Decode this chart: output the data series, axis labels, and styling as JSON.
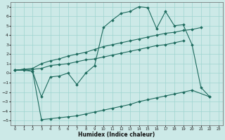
{
  "xlabel": "Humidex (Indice chaleur)",
  "ylabel": "",
  "xlim": [
    -0.5,
    23.5
  ],
  "ylim": [
    -5.5,
    7.5
  ],
  "xticks": [
    0,
    1,
    2,
    3,
    4,
    5,
    6,
    7,
    8,
    9,
    10,
    11,
    12,
    13,
    14,
    15,
    16,
    17,
    18,
    19,
    20,
    21,
    22,
    23
  ],
  "yticks": [
    -5,
    -4,
    -3,
    -2,
    -1,
    0,
    1,
    2,
    3,
    4,
    5,
    6,
    7
  ],
  "bg_color": "#cce9e7",
  "line_color": "#1e6b5e",
  "grid_color": "#9fd4cf",
  "line_top_x": [
    0,
    1,
    2,
    3,
    4,
    5,
    6,
    7,
    8,
    9,
    10,
    11,
    12,
    13,
    14,
    15,
    16,
    17,
    18,
    19,
    20,
    21
  ],
  "line_top_y": [
    0.3,
    0.4,
    0.5,
    1.0,
    1.3,
    1.5,
    1.8,
    2.0,
    2.2,
    2.5,
    2.8,
    3.0,
    3.2,
    3.4,
    3.6,
    3.8,
    4.0,
    4.2,
    4.3,
    4.5,
    4.6,
    4.8
  ],
  "line_mid_x": [
    0,
    1,
    2,
    3,
    4,
    5,
    6,
    7,
    8,
    9,
    10,
    11,
    12,
    13,
    14,
    15,
    16,
    17,
    18,
    19
  ],
  "line_mid_y": [
    0.3,
    0.4,
    0.4,
    0.5,
    0.8,
    0.9,
    1.0,
    1.2,
    1.4,
    1.5,
    1.7,
    1.9,
    2.1,
    2.3,
    2.5,
    2.7,
    2.9,
    3.0,
    3.2,
    3.4
  ],
  "line_jagged_x": [
    0,
    1,
    2,
    3,
    4,
    5,
    6,
    7,
    8,
    9,
    10,
    11,
    12,
    13,
    14,
    15,
    16,
    17,
    18,
    19,
    20,
    21,
    22
  ],
  "line_jagged_y": [
    0.3,
    0.4,
    0.2,
    -2.5,
    -0.4,
    -0.3,
    0.0,
    -1.2,
    0.0,
    0.8,
    4.8,
    5.6,
    6.3,
    6.5,
    7.0,
    6.9,
    4.7,
    6.5,
    5.0,
    5.1,
    3.0,
    -1.5,
    -2.5
  ],
  "line_bot_x": [
    0,
    1,
    2,
    3,
    4,
    5,
    6,
    7,
    8,
    9,
    10,
    11,
    12,
    13,
    14,
    15,
    16,
    17,
    18,
    19,
    20,
    22
  ],
  "line_bot_y": [
    0.3,
    0.3,
    0.2,
    -4.9,
    -4.8,
    -4.7,
    -4.6,
    -4.5,
    -4.3,
    -4.1,
    -3.9,
    -3.7,
    -3.5,
    -3.3,
    -3.0,
    -2.8,
    -2.6,
    -2.4,
    -2.2,
    -2.0,
    -1.8,
    -2.5
  ]
}
